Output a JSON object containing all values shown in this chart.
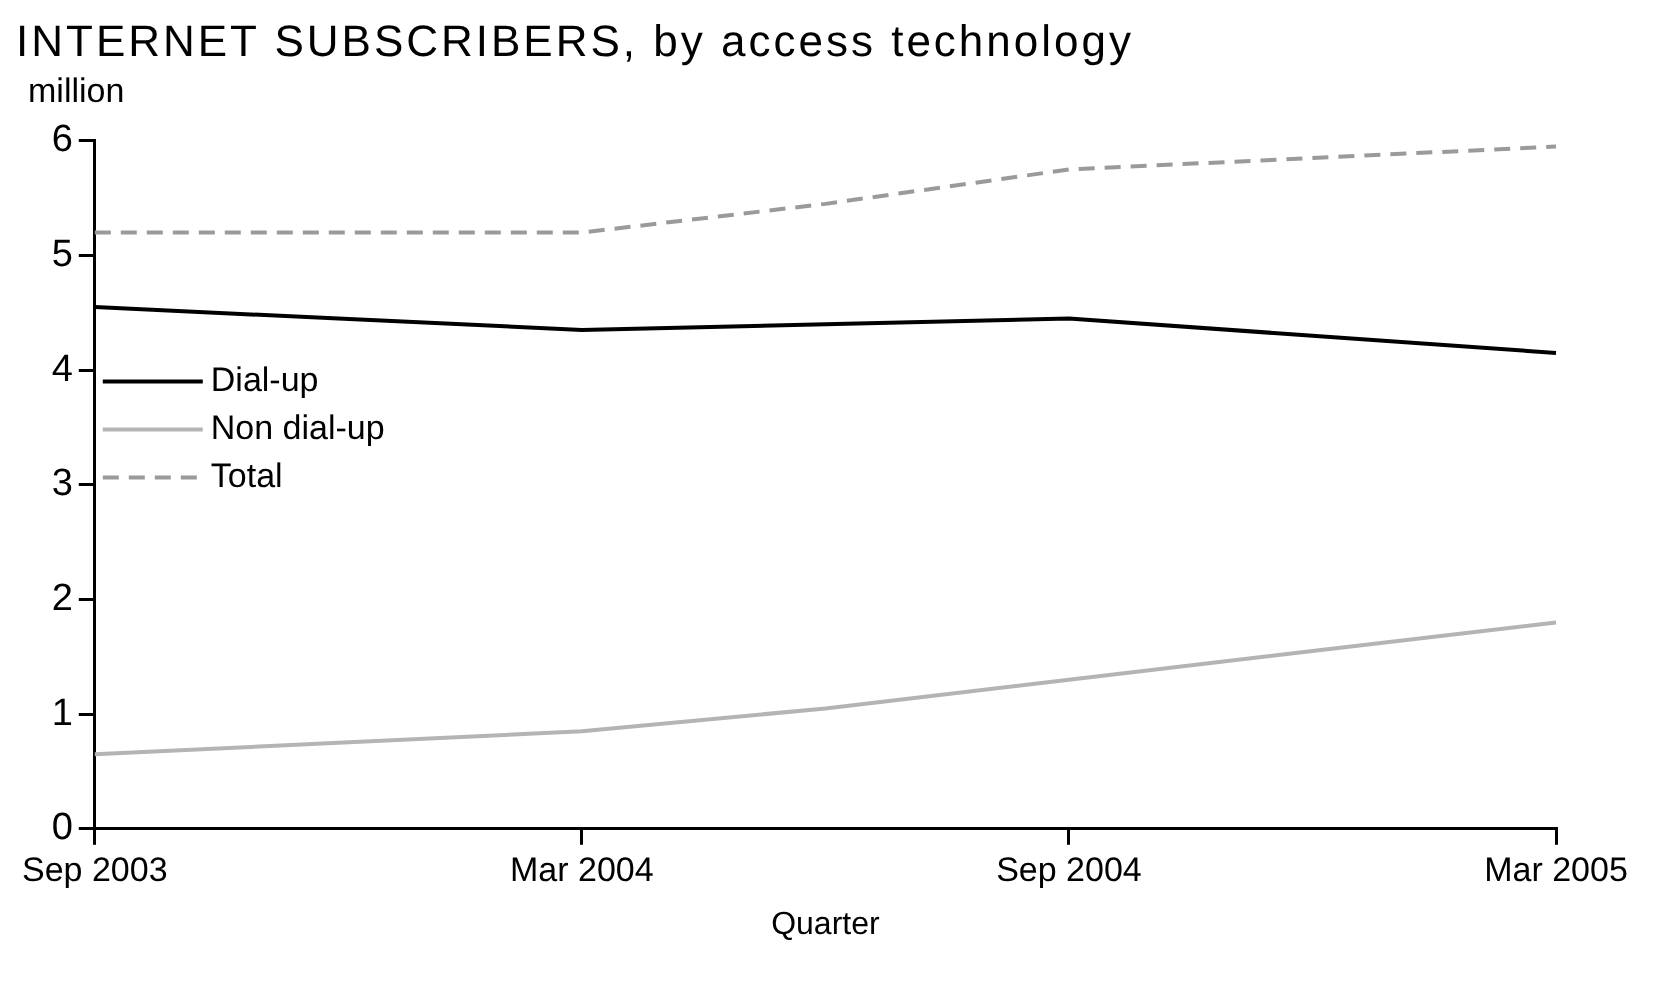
{
  "chart_data": {
    "type": "line",
    "title": "INTERNET SUBSCRIBERS, by access technology",
    "ylabel": "million",
    "xlabel": "Quarter",
    "categories": [
      "Sep 2003",
      null,
      "Mar 2004",
      null,
      "Sep 2004",
      null,
      "Mar 2005"
    ],
    "series": [
      {
        "name": "Dial-up",
        "color": "#000000",
        "line_style": "solid",
        "values": [
          4.55,
          4.45,
          4.35,
          4.4,
          4.45,
          4.3,
          4.15
        ]
      },
      {
        "name": "Non dial-up",
        "color": "#b4b4b4",
        "line_style": "solid",
        "values": [
          0.65,
          0.75,
          0.85,
          1.05,
          1.3,
          1.55,
          1.8
        ]
      },
      {
        "name": "Total",
        "color": "#9a9a9a",
        "line_style": "dashed",
        "values": [
          5.2,
          5.2,
          5.2,
          5.45,
          5.75,
          5.85,
          5.95
        ]
      }
    ],
    "ylim": [
      0,
      6
    ],
    "yticks": [
      0,
      1,
      2,
      3,
      4,
      5,
      6
    ],
    "grid": false,
    "legend": "left",
    "marker": "none"
  }
}
